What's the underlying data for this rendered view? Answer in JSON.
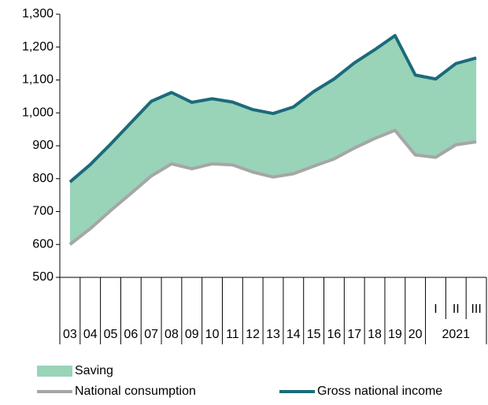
{
  "chart_data": {
    "type": "line",
    "categories": [
      "03",
      "04",
      "05",
      "06",
      "07",
      "08",
      "09",
      "10",
      "11",
      "12",
      "13",
      "14",
      "15",
      "16",
      "17",
      "18",
      "19",
      "20",
      "I",
      "II",
      "III"
    ],
    "group_label": "2021",
    "ylim": [
      500,
      1300
    ],
    "yticks": [
      {
        "value": 500,
        "label": "500"
      },
      {
        "value": 600,
        "label": "600"
      },
      {
        "value": 700,
        "label": "700"
      },
      {
        "value": 800,
        "label": "800"
      },
      {
        "value": 900,
        "label": "900"
      },
      {
        "value": 1000,
        "label": "1,000"
      },
      {
        "value": 1100,
        "label": "1,100"
      },
      {
        "value": 1200,
        "label": "1,200"
      },
      {
        "value": 1300,
        "label": "1,300"
      }
    ],
    "series": [
      {
        "name": "Saving",
        "color": "#99d3b8",
        "stack_on": 1,
        "values": [
          190,
          195,
          202,
          215,
          227,
          217,
          202,
          198,
          191,
          190,
          193,
          203,
          227,
          243,
          259,
          270,
          288,
          243,
          238,
          247,
          255
        ]
      },
      {
        "name": "National consumption",
        "color": "#a6a6a6",
        "values": [
          600,
          648,
          703,
          755,
          808,
          845,
          830,
          845,
          842,
          820,
          805,
          815,
          838,
          860,
          893,
          922,
          947,
          872,
          865,
          903,
          912
        ]
      },
      {
        "name": "Gross national income",
        "color": "#1b6b7b",
        "values": [
          790,
          843,
          905,
          970,
          1035,
          1062,
          1032,
          1043,
          1033,
          1010,
          998,
          1018,
          1065,
          1103,
          1152,
          1192,
          1235,
          1115,
          1103,
          1150,
          1167
        ]
      }
    ]
  }
}
